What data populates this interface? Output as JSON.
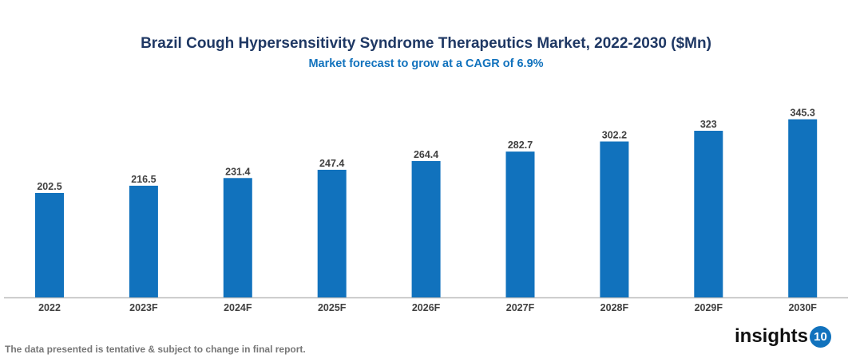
{
  "chart_data": {
    "type": "bar",
    "title": "Brazil Cough Hypersensitivity Syndrome Therapeutics Market, 2022-2030 ($Mn)",
    "subtitle": "Market forecast to grow at a CAGR of 6.9%",
    "categories": [
      "2022",
      "2023F",
      "2024F",
      "2025F",
      "2026F",
      "2027F",
      "2028F",
      "2029F",
      "2030F"
    ],
    "values": [
      202.5,
      216.5,
      231.4,
      247.4,
      264.4,
      282.7,
      302.2,
      323,
      345.3
    ],
    "labels": [
      "202.5",
      "216.5",
      "231.4",
      "247.4",
      "264.4",
      "282.7",
      "302.2",
      "323",
      "345.3"
    ],
    "xlabel": "",
    "ylabel": "",
    "ylim": [
      0,
      370
    ],
    "grid": false,
    "bar_color": "#1172bd"
  },
  "footnote": "The data presented is tentative & subject to change in final report.",
  "logo": {
    "text": "insights",
    "badge": "10"
  }
}
